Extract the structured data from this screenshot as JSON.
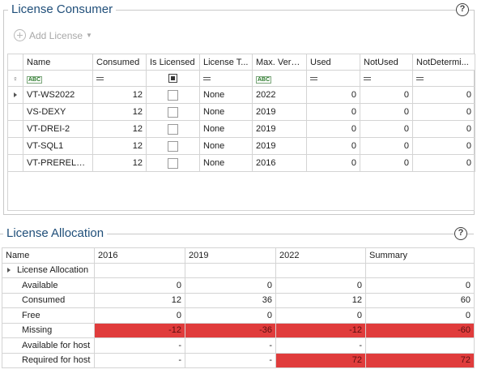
{
  "consumer": {
    "title": "License Consumer",
    "help": "?",
    "add_license_label": "Add License",
    "columns": [
      "Name",
      "Consumed",
      "Is Licensed",
      "License T...",
      "Max. Vers...",
      "Used",
      "NotUsed",
      "NotDetermi..."
    ],
    "rows": [
      {
        "name": "VT-WS2022",
        "consumed": "12",
        "license_type": "None",
        "max_version": "2022",
        "used": "0",
        "not_used": "0",
        "not_determined": "0"
      },
      {
        "name": "VS-DEXY",
        "consumed": "12",
        "license_type": "None",
        "max_version": "2019",
        "used": "0",
        "not_used": "0",
        "not_determined": "0"
      },
      {
        "name": "VT-DREI-2",
        "consumed": "12",
        "license_type": "None",
        "max_version": "2019",
        "used": "0",
        "not_used": "0",
        "not_determined": "0"
      },
      {
        "name": "VT-SQL1",
        "consumed": "12",
        "license_type": "None",
        "max_version": "2019",
        "used": "0",
        "not_used": "0",
        "not_determined": "0"
      },
      {
        "name": "VT-PRERELEASE",
        "consumed": "12",
        "license_type": "None",
        "max_version": "2016",
        "used": "0",
        "not_used": "0",
        "not_determined": "0"
      }
    ]
  },
  "allocation": {
    "title": "License Allocation",
    "help": "?",
    "columns": [
      "Name",
      "2016",
      "2019",
      "2022",
      "Summary"
    ],
    "group_label": "License Allocation",
    "rows": [
      {
        "name": "Available",
        "v2016": "0",
        "v2019": "0",
        "v2022": "0",
        "summary": "0"
      },
      {
        "name": "Consumed",
        "v2016": "12",
        "v2019": "36",
        "v2022": "12",
        "summary": "60"
      },
      {
        "name": "Free",
        "v2016": "0",
        "v2019": "0",
        "v2022": "0",
        "summary": "0"
      },
      {
        "name": "Missing",
        "v2016": "-12",
        "v2019": "-36",
        "v2022": "-12",
        "summary": "-60"
      },
      {
        "name": "Available for host",
        "v2016": "-",
        "v2019": "-",
        "v2022": "-",
        "summary": ""
      },
      {
        "name": "Required for host",
        "v2016": "-",
        "v2019": "-",
        "v2022": "72",
        "summary": "72"
      }
    ],
    "missing_color": "#e03c3c"
  }
}
